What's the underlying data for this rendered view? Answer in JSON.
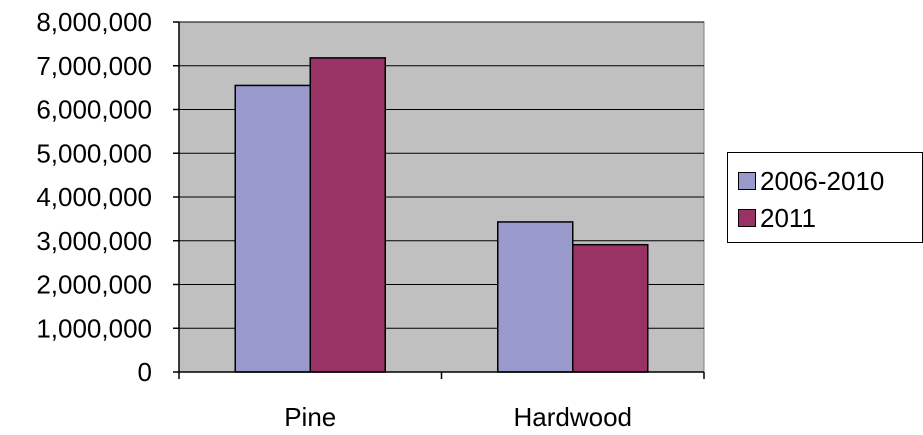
{
  "chart_data": {
    "type": "bar",
    "categories": [
      "Pine",
      "Hardwood"
    ],
    "series": [
      {
        "name": "2006-2010",
        "values": [
          6550000,
          3430000
        ],
        "color": "#9999cc"
      },
      {
        "name": "2011",
        "values": [
          7180000,
          2910000
        ],
        "color": "#993366"
      }
    ],
    "ylim": [
      0,
      8000000
    ],
    "yticks": [
      "0",
      "1,000,000",
      "2,000,000",
      "3,000,000",
      "4,000,000",
      "5,000,000",
      "6,000,000",
      "7,000,000",
      "8,000,000"
    ],
    "ytick_values": [
      0,
      1000000,
      2000000,
      3000000,
      4000000,
      5000000,
      6000000,
      7000000,
      8000000
    ],
    "grid": true,
    "plot_background": "#c0c0c0",
    "legend_position": "right"
  }
}
